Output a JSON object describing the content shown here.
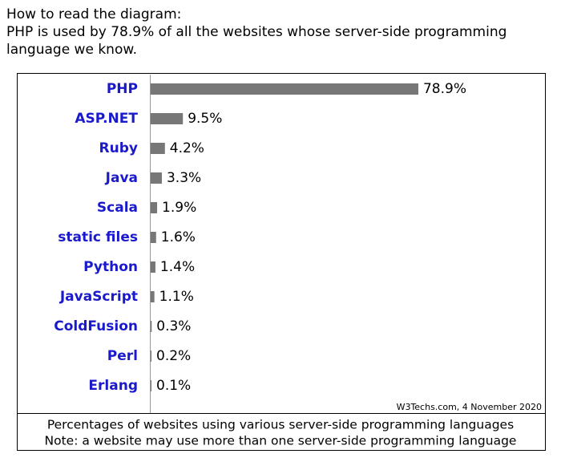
{
  "intro": [
    "How to read the diagram:",
    "PHP is used by 78.9% of all the websites whose server-side programming",
    "language we know."
  ],
  "chart_data": {
    "type": "bar",
    "orientation": "horizontal",
    "categories": [
      "PHP",
      "ASP.NET",
      "Ruby",
      "Java",
      "Scala",
      "static files",
      "Python",
      "JavaScript",
      "ColdFusion",
      "Perl",
      "Erlang"
    ],
    "values": [
      78.9,
      9.5,
      4.2,
      3.3,
      1.9,
      1.6,
      1.4,
      1.1,
      0.3,
      0.2,
      0.1
    ],
    "value_labels": [
      "78.9%",
      "9.5%",
      "4.2%",
      "3.3%",
      "1.9%",
      "1.6%",
      "1.4%",
      "1.1%",
      "0.3%",
      "0.2%",
      "0.1%"
    ],
    "color": "#777777",
    "credit": "W3Techs.com, 4 November 2020",
    "caption": [
      "Percentages of websites using various server-side programming languages",
      "Note: a website may use more than one server-side programming language"
    ]
  }
}
